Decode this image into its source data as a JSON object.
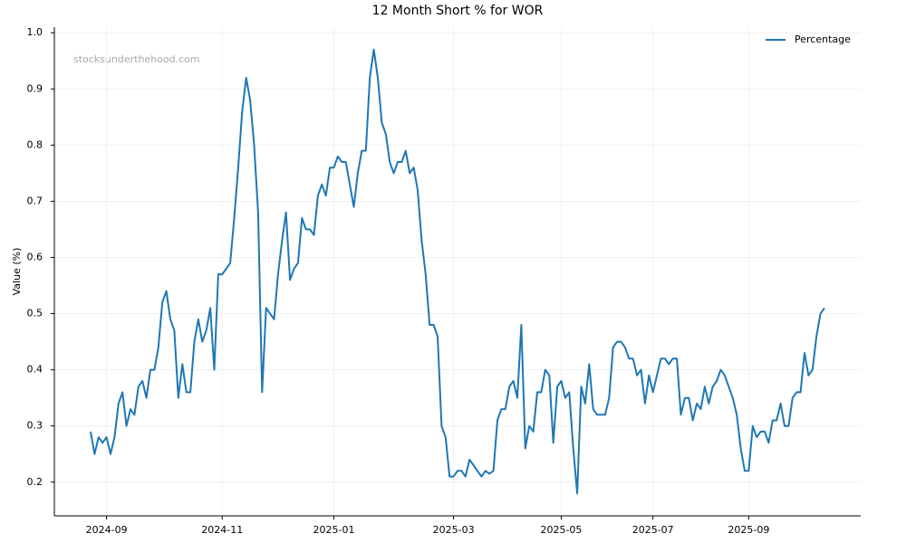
{
  "chart_data": {
    "type": "line",
    "title": "12 Month Short % for WOR",
    "ylabel": "Value (%)",
    "annotation": "stocksunderthehood.com",
    "x": [
      "2024-08",
      "2024-08",
      "2024-08",
      "2024-08",
      "2024-09",
      "2024-09",
      "2024-09",
      "2024-09",
      "2024-09",
      "2024-09",
      "2024-09",
      "2024-09",
      "2024-09",
      "2024-09",
      "2024-09",
      "2024-09",
      "2024-09",
      "2024-09",
      "2024-10",
      "2024-10",
      "2024-10",
      "2024-10",
      "2024-10",
      "2024-10",
      "2024-10",
      "2024-10",
      "2024-10",
      "2024-10",
      "2024-10",
      "2024-10",
      "2024-10",
      "2024-10",
      "2024-10",
      "2024-11",
      "2024-11",
      "2024-11",
      "2024-11",
      "2024-11",
      "2024-11",
      "2024-11",
      "2024-11",
      "2024-11",
      "2024-11",
      "2024-11",
      "2024-11",
      "2024-11",
      "2024-11",
      "2024-11",
      "2024-11",
      "2024-12",
      "2024-12",
      "2024-12",
      "2024-12",
      "2024-12",
      "2024-12",
      "2024-12",
      "2024-12",
      "2024-12",
      "2024-12",
      "2024-12",
      "2024-12",
      "2025-01",
      "2025-01",
      "2025-01",
      "2025-01",
      "2025-01",
      "2025-01",
      "2025-01",
      "2025-01",
      "2025-01",
      "2025-01",
      "2025-01",
      "2025-01",
      "2025-01",
      "2025-01",
      "2025-02",
      "2025-02",
      "2025-02",
      "2025-02",
      "2025-02",
      "2025-02",
      "2025-02",
      "2025-02",
      "2025-02",
      "2025-02",
      "2025-02",
      "2025-02",
      "2025-02",
      "2025-02",
      "2025-02",
      "2025-02",
      "2025-03",
      "2025-03",
      "2025-03",
      "2025-03",
      "2025-03",
      "2025-03",
      "2025-03",
      "2025-03",
      "2025-03",
      "2025-03",
      "2025-03",
      "2025-03",
      "2025-03",
      "2025-03",
      "2025-04",
      "2025-04",
      "2025-04",
      "2025-04",
      "2025-04",
      "2025-04",
      "2025-04",
      "2025-04",
      "2025-04",
      "2025-04",
      "2025-04",
      "2025-04",
      "2025-04",
      "2025-05",
      "2025-05",
      "2025-05",
      "2025-05",
      "2025-05",
      "2025-05",
      "2025-05",
      "2025-05",
      "2025-05",
      "2025-05",
      "2025-05",
      "2025-05",
      "2025-06",
      "2025-06",
      "2025-06",
      "2025-06",
      "2025-06",
      "2025-06",
      "2025-06",
      "2025-06",
      "2025-06",
      "2025-06",
      "2025-06",
      "2025-07",
      "2025-07",
      "2025-07",
      "2025-07",
      "2025-07",
      "2025-07",
      "2025-07",
      "2025-07",
      "2025-07",
      "2025-07",
      "2025-07",
      "2025-08",
      "2025-08",
      "2025-08",
      "2025-08",
      "2025-08",
      "2025-08",
      "2025-08",
      "2025-08",
      "2025-08",
      "2025-08",
      "2025-08",
      "2025-08",
      "2025-08",
      "2025-09",
      "2025-09",
      "2025-09",
      "2025-09",
      "2025-09",
      "2025-09",
      "2025-09",
      "2025-09",
      "2025-09",
      "2025-09",
      "2025-09",
      "2025-09",
      "2025-09",
      "2025-09",
      "2025-10",
      "2025-10",
      "2025-10",
      "2025-10",
      "2025-10",
      "2025-10"
    ],
    "series": [
      {
        "name": "Percentage",
        "color": "#1f77b4",
        "values": [
          0.29,
          0.25,
          0.28,
          0.27,
          0.28,
          0.25,
          0.28,
          0.34,
          0.36,
          0.3,
          0.33,
          0.32,
          0.37,
          0.38,
          0.35,
          0.4,
          0.4,
          0.44,
          0.52,
          0.54,
          0.49,
          0.47,
          0.35,
          0.41,
          0.36,
          0.36,
          0.45,
          0.49,
          0.45,
          0.47,
          0.51,
          0.4,
          0.57,
          0.57,
          0.58,
          0.59,
          0.67,
          0.76,
          0.86,
          0.92,
          0.88,
          0.8,
          0.68,
          0.36,
          0.51,
          0.5,
          0.49,
          0.57,
          0.63,
          0.68,
          0.56,
          0.58,
          0.59,
          0.67,
          0.65,
          0.65,
          0.64,
          0.71,
          0.73,
          0.71,
          0.76,
          0.76,
          0.78,
          0.77,
          0.77,
          0.73,
          0.69,
          0.75,
          0.79,
          0.79,
          0.92,
          0.97,
          0.92,
          0.84,
          0.82,
          0.77,
          0.75,
          0.77,
          0.77,
          0.79,
          0.75,
          0.76,
          0.72,
          0.63,
          0.57,
          0.48,
          0.48,
          0.46,
          0.3,
          0.28,
          0.21,
          0.21,
          0.22,
          0.22,
          0.21,
          0.24,
          0.23,
          0.22,
          0.21,
          0.22,
          0.215,
          0.22,
          0.31,
          0.33,
          0.33,
          0.37,
          0.38,
          0.35,
          0.48,
          0.26,
          0.3,
          0.29,
          0.36,
          0.36,
          0.4,
          0.39,
          0.27,
          0.37,
          0.38,
          0.35,
          0.36,
          0.26,
          0.18,
          0.37,
          0.34,
          0.41,
          0.33,
          0.32,
          0.32,
          0.32,
          0.35,
          0.44,
          0.45,
          0.45,
          0.44,
          0.42,
          0.42,
          0.39,
          0.4,
          0.34,
          0.39,
          0.36,
          0.39,
          0.42,
          0.42,
          0.41,
          0.42,
          0.42,
          0.32,
          0.35,
          0.35,
          0.31,
          0.34,
          0.33,
          0.37,
          0.34,
          0.37,
          0.38,
          0.4,
          0.39,
          0.37,
          0.35,
          0.32,
          0.26,
          0.22,
          0.22,
          0.3,
          0.28,
          0.29,
          0.29,
          0.27,
          0.31,
          0.31,
          0.34,
          0.3,
          0.3,
          0.35,
          0.36,
          0.36,
          0.43,
          0.39,
          0.4,
          0.46,
          0.5,
          0.51
        ]
      }
    ],
    "xticks": [
      "2024-09",
      "2024-11",
      "2025-01",
      "2025-03",
      "2025-05",
      "2025-07",
      "2025-09"
    ],
    "ylim": [
      0.14,
      1.01
    ],
    "yticks": [
      0.2,
      0.3,
      0.4,
      0.5,
      0.6,
      0.7,
      0.8,
      0.9,
      {
        "value": 1,
        "label": "1.0"
      }
    ],
    "grid": true,
    "legend": "upper right"
  }
}
